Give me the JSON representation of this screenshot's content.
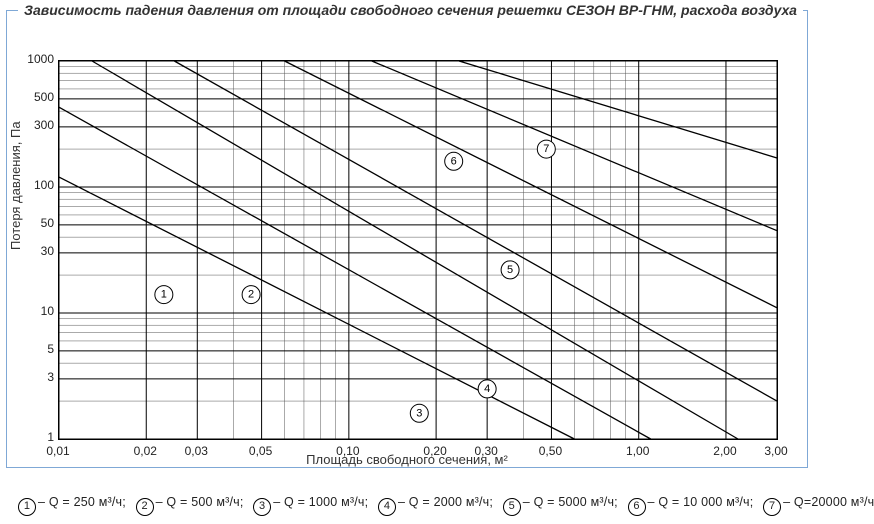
{
  "title": "Зависимость падения давления от площади свободного сечения решетки СЕЗОН ВР-ГНМ, расхода воздуха",
  "chart": {
    "type": "line-loglog",
    "xlabel": "Площадь свободного сечения, м²",
    "ylabel": "Потеря давления, Па",
    "x_axis": {
      "scale": "log",
      "min": 0.01,
      "max": 3.0,
      "major_ticks": [
        0.01,
        0.02,
        0.03,
        0.05,
        0.1,
        0.2,
        0.3,
        0.5,
        1.0,
        2.0,
        3.0
      ],
      "tick_labels": [
        "0,01",
        "0,02",
        "0,03",
        "0,05",
        "0,10",
        "0,20",
        "0,30",
        "0,50",
        "1,00",
        "2,00",
        "3,00"
      ],
      "minor_ticks": [
        0.04,
        0.06,
        0.07,
        0.08,
        0.09,
        0.4,
        0.6,
        0.7,
        0.8,
        0.9
      ]
    },
    "y_axis": {
      "scale": "log",
      "min": 1,
      "max": 1000,
      "major_ticks": [
        1,
        3,
        5,
        10,
        30,
        50,
        100,
        300,
        500,
        1000
      ],
      "tick_labels": [
        "1",
        "3",
        "5",
        "10",
        "30",
        "50",
        "100",
        "300",
        "500",
        "1000"
      ],
      "minor_ticks": [
        2,
        4,
        6,
        7,
        8,
        9,
        20,
        40,
        60,
        70,
        80,
        90,
        200,
        400,
        600,
        700,
        800,
        900
      ]
    },
    "series": [
      {
        "id": 1,
        "label": "Q = 250 м³/ч",
        "p1": [
          0.01,
          120
        ],
        "p2": [
          0.6,
          1
        ],
        "badge": [
          0.023,
          14
        ]
      },
      {
        "id": 2,
        "label": "Q = 500 м³/ч",
        "p1": [
          0.01,
          430
        ],
        "p2": [
          1.1,
          1
        ],
        "badge": [
          0.046,
          14
        ]
      },
      {
        "id": 3,
        "label": "Q = 1000 м³/ч",
        "p1": [
          0.013,
          1000
        ],
        "p2": [
          2.2,
          1
        ],
        "badge": [
          0.175,
          1.6
        ]
      },
      {
        "id": 4,
        "label": "Q = 2000 м³/ч",
        "p1": [
          0.025,
          1000
        ],
        "p2": [
          3.0,
          2
        ],
        "badge": [
          0.3,
          2.5
        ]
      },
      {
        "id": 5,
        "label": "Q = 5000 м³/ч",
        "p1": [
          0.06,
          1000
        ],
        "p2": [
          3.0,
          11
        ],
        "badge": [
          0.36,
          22
        ]
      },
      {
        "id": 6,
        "label": "Q = 10 000 м³/ч",
        "p1": [
          0.12,
          1000
        ],
        "p2": [
          3.0,
          45
        ],
        "badge": [
          0.23,
          160
        ]
      },
      {
        "id": 7,
        "label": "Q=20000 м³/ч",
        "p1": [
          0.24,
          1000
        ],
        "p2": [
          3.0,
          170
        ],
        "badge": [
          0.48,
          200
        ]
      }
    ],
    "colors": {
      "frame_border": "#7fa8d6",
      "grid_minor": "#555555",
      "grid_major": "#000000",
      "line": "#000000",
      "background": "#ffffff",
      "text": "#222222"
    },
    "line_width": 1.3
  },
  "legend_sep": "– ",
  "legend_suffix": ";"
}
